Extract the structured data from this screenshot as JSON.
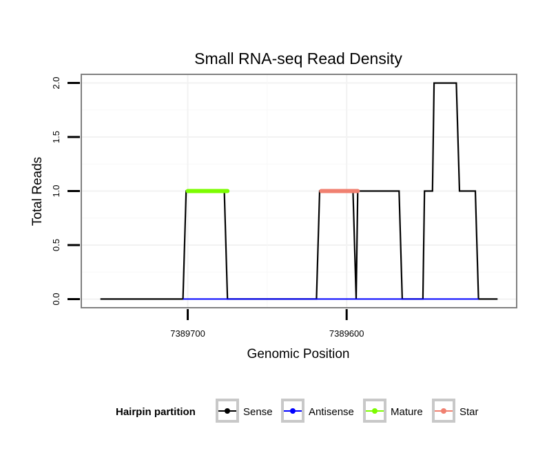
{
  "chart_data": {
    "type": "line",
    "title": "Small RNA-seq Read Density",
    "xlabel": "Genomic Position",
    "ylabel": "Total Reads",
    "x_reversed": true,
    "xlim": [
      7389767,
      7389493
    ],
    "ylim": [
      -0.08,
      2.08
    ],
    "x_ticks": [
      7389700,
      7389600
    ],
    "x_tick_labels": [
      "7389700",
      "7389600"
    ],
    "y_ticks": [
      0,
      0.5,
      1,
      1.5,
      2
    ],
    "y_tick_labels": [
      "0.0",
      "0.5",
      "1.0",
      "1.5",
      "2.0"
    ],
    "grid": true,
    "series": [
      {
        "name": "Sense",
        "color": "#000000",
        "points": [
          [
            7389755,
            0
          ],
          [
            7389703,
            0
          ],
          [
            7389701,
            1
          ],
          [
            7389677,
            1
          ],
          [
            7389675,
            0
          ],
          [
            7389619,
            0
          ],
          [
            7389617,
            1
          ],
          [
            7389596,
            1
          ],
          [
            7389594,
            0
          ],
          [
            7389593,
            1
          ],
          [
            7389567,
            1
          ],
          [
            7389565,
            0
          ],
          [
            7389552,
            0
          ],
          [
            7389551,
            1
          ],
          [
            7389546,
            1
          ],
          [
            7389545,
            2
          ],
          [
            7389531,
            2
          ],
          [
            7389529,
            1
          ],
          [
            7389519,
            1
          ],
          [
            7389517,
            0
          ],
          [
            7389505,
            0
          ]
        ]
      },
      {
        "name": "Antisense",
        "color": "#0000ff",
        "points": [
          [
            7389703,
            0
          ],
          [
            7389517,
            0
          ]
        ]
      },
      {
        "name": "Mature",
        "color": "#7cfc00",
        "points": [
          [
            7389700,
            1
          ],
          [
            7389675,
            1
          ]
        ]
      },
      {
        "name": "Star",
        "color": "#f08070",
        "points": [
          [
            7389616,
            1
          ],
          [
            7389593,
            1
          ]
        ]
      }
    ],
    "legend": {
      "title": "Hairpin partition",
      "position": "bottom",
      "entries": [
        {
          "label": "Sense",
          "color": "#000000"
        },
        {
          "label": "Antisense",
          "color": "#0000ff"
        },
        {
          "label": "Mature",
          "color": "#7cfc00"
        },
        {
          "label": "Star",
          "color": "#f08070"
        }
      ]
    }
  }
}
